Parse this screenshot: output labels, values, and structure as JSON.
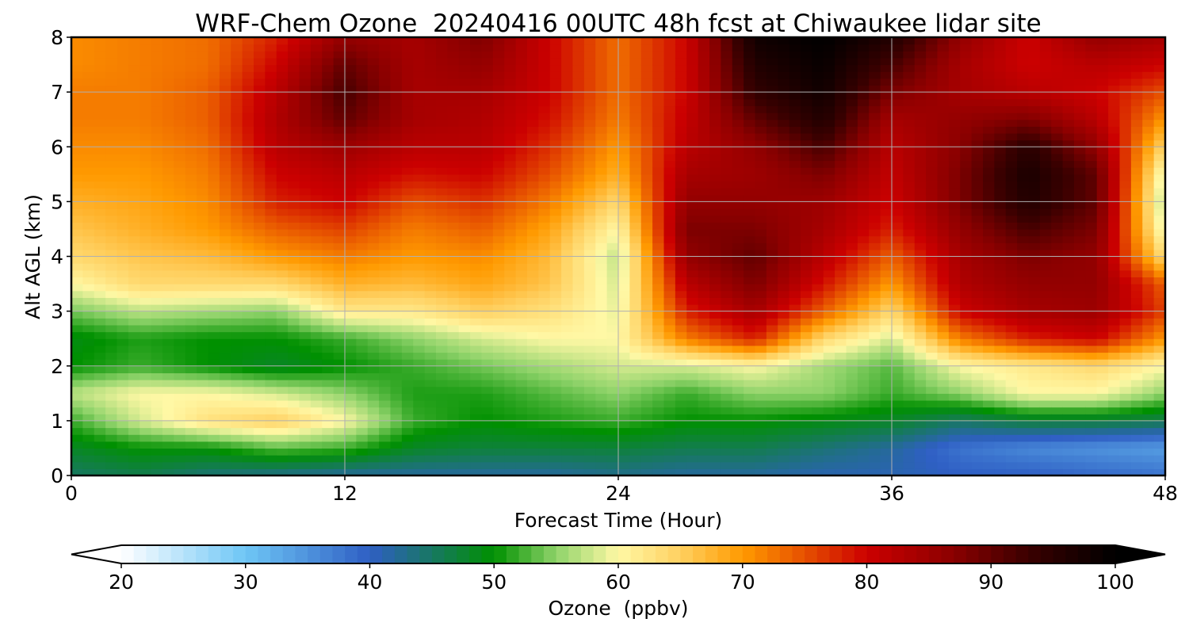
{
  "chart_data": {
    "type": "heatmap",
    "title": "WRF-Chem Ozone  20240416 00UTC 48h fcst at Chiwaukee lidar site",
    "xlabel": "Forecast Time (Hour)",
    "ylabel": "Alt AGL (km)",
    "xlim": [
      0,
      48
    ],
    "ylim": [
      0,
      8
    ],
    "x_ticks": [
      0,
      12,
      24,
      36,
      48
    ],
    "y_ticks": [
      0,
      1,
      2,
      3,
      4,
      5,
      6,
      7,
      8
    ],
    "grid": true,
    "colorbar": {
      "label": "Ozone  (ppbv)",
      "orientation": "horizontal",
      "placement": "bottom",
      "vmin": 20,
      "vmax": 100,
      "ticks": [
        20,
        30,
        40,
        50,
        60,
        70,
        80,
        90,
        100
      ],
      "extend": "both",
      "color_stops": [
        {
          "value": 20,
          "color": "#ffffff"
        },
        {
          "value": 30,
          "color": "#6ec6f5"
        },
        {
          "value": 40,
          "color": "#2f5fc4"
        },
        {
          "value": 50,
          "color": "#009000"
        },
        {
          "value": 55,
          "color": "#8fd36a"
        },
        {
          "value": 60,
          "color": "#fff8a5"
        },
        {
          "value": 65,
          "color": "#ffd060"
        },
        {
          "value": 70,
          "color": "#ff9a00"
        },
        {
          "value": 75,
          "color": "#e65000"
        },
        {
          "value": 80,
          "color": "#cc0000"
        },
        {
          "value": 87,
          "color": "#8a0000"
        },
        {
          "value": 93,
          "color": "#3a0000"
        },
        {
          "value": 100,
          "color": "#000000"
        }
      ]
    },
    "z_units": "ppbv",
    "x": [
      0,
      3,
      6,
      9,
      12,
      15,
      18,
      21,
      24,
      27,
      30,
      33,
      36,
      39,
      42,
      45,
      48
    ],
    "y": [
      0,
      0.5,
      1,
      1.5,
      2,
      2.5,
      3,
      3.5,
      4,
      4.5,
      5,
      5.5,
      6,
      6.5,
      7,
      7.5,
      8
    ],
    "z": [
      [
        45,
        46,
        44,
        43,
        42,
        42,
        42,
        42,
        43,
        42,
        42,
        41,
        41,
        40,
        40,
        39,
        38
      ],
      [
        48,
        50,
        50,
        53,
        52,
        48,
        47,
        47,
        47,
        46,
        46,
        44,
        42,
        38,
        36,
        35,
        34
      ],
      [
        52,
        58,
        63,
        65,
        60,
        52,
        50,
        51,
        52,
        50,
        50,
        49,
        48,
        45,
        47,
        47,
        46
      ],
      [
        57,
        60,
        60,
        58,
        55,
        51,
        51,
        53,
        55,
        52,
        55,
        55,
        52,
        55,
        60,
        60,
        55
      ],
      [
        50,
        52,
        50,
        48,
        50,
        52,
        54,
        56,
        58,
        58,
        60,
        56,
        53,
        60,
        62,
        64,
        60
      ],
      [
        49,
        51,
        50,
        50,
        52,
        55,
        58,
        60,
        60,
        72,
        78,
        64,
        58,
        72,
        78,
        80,
        70
      ],
      [
        54,
        57,
        56,
        55,
        62,
        62,
        65,
        63,
        59,
        78,
        84,
        74,
        64,
        80,
        84,
        85,
        76
      ],
      [
        60,
        64,
        64,
        64,
        68,
        67,
        69,
        66,
        58,
        82,
        88,
        79,
        70,
        83,
        86,
        86,
        74
      ],
      [
        64,
        66,
        67,
        70,
        72,
        70,
        71,
        67,
        57,
        86,
        90,
        82,
        74,
        84,
        88,
        86,
        63
      ],
      [
        66,
        68,
        70,
        74,
        76,
        72,
        74,
        69,
        60,
        88,
        88,
        84,
        78,
        86,
        92,
        88,
        58
      ],
      [
        68,
        69,
        71,
        78,
        80,
        75,
        77,
        72,
        64,
        86,
        86,
        85,
        80,
        88,
        96,
        90,
        56
      ],
      [
        70,
        70,
        72,
        80,
        82,
        79,
        80,
        75,
        68,
        84,
        85,
        88,
        81,
        88,
        97,
        90,
        58
      ],
      [
        71,
        71,
        73,
        82,
        85,
        82,
        82,
        77,
        70,
        82,
        86,
        92,
        82,
        87,
        95,
        86,
        64
      ],
      [
        72,
        72,
        74,
        83,
        90,
        84,
        83,
        79,
        72,
        81,
        90,
        96,
        84,
        86,
        88,
        82,
        70
      ],
      [
        72,
        72,
        74,
        82,
        92,
        84,
        84,
        80,
        73,
        80,
        94,
        98,
        88,
        84,
        82,
        80,
        75
      ],
      [
        71,
        72,
        73,
        80,
        90,
        84,
        86,
        80,
        73,
        80,
        96,
        99,
        92,
        84,
        80,
        82,
        80
      ],
      [
        71,
        72,
        73,
        78,
        86,
        84,
        88,
        80,
        73,
        80,
        98,
        100,
        96,
        86,
        80,
        86,
        84
      ]
    ]
  }
}
